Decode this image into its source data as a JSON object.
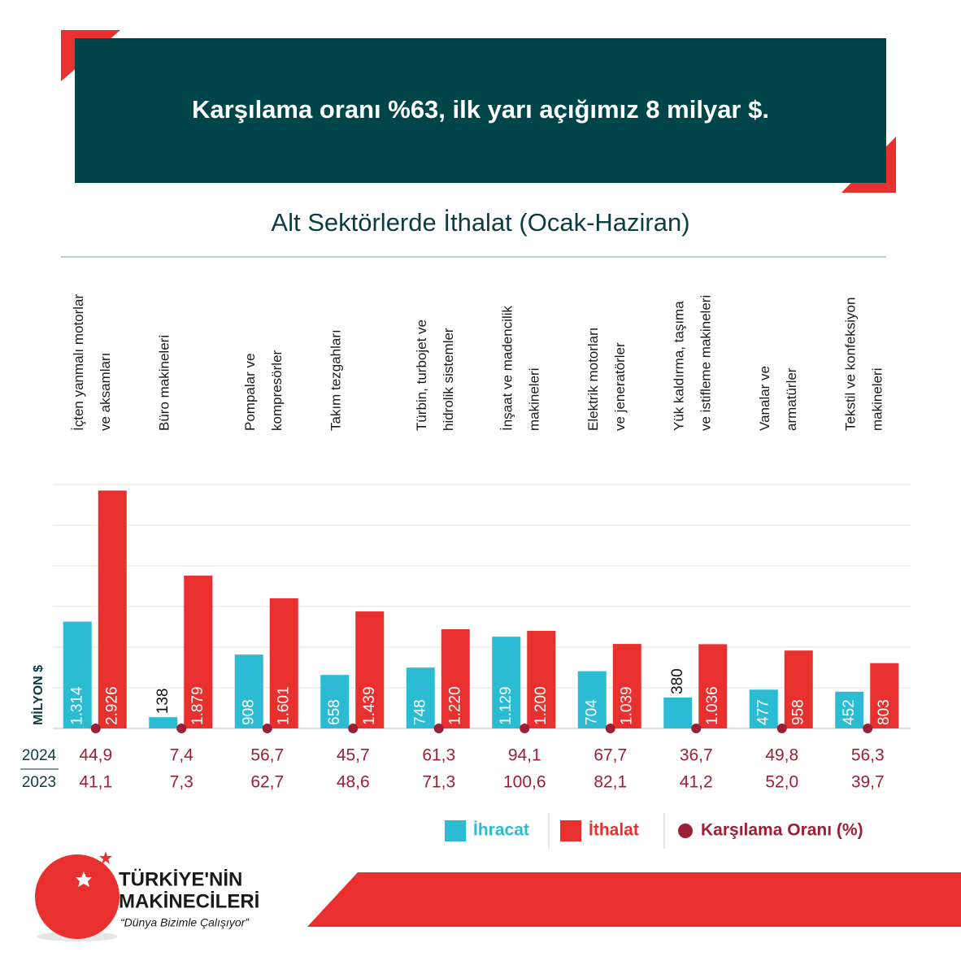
{
  "header": {
    "title": "Karşılama oranı %63, ilk yarı açığımız 8 milyar $."
  },
  "chart_data": {
    "type": "bar",
    "title": "Alt Sektörlerde İthalat (Ocak-Haziran)",
    "y_label": "MİLYON $",
    "categories": [
      [
        "İçten yanmalı motorlar",
        "ve aksamları"
      ],
      [
        "Büro makineleri"
      ],
      [
        "Pompalar ve",
        "kompresörler"
      ],
      [
        "Takım tezgahları"
      ],
      [
        "Türbin, turbojet ve",
        "hidrolik sistemler"
      ],
      [
        "İnşaat ve madencilik",
        "makineleri"
      ],
      [
        "Elektrik motorları",
        "ve jeneratörler"
      ],
      [
        "Yük kaldırma, taşıma",
        "ve istifleme makineleri"
      ],
      [
        "Vanalar ve",
        "armatürler"
      ],
      [
        "Tekstil ve konfeksiyon",
        "makineleri"
      ]
    ],
    "series": [
      {
        "name": "İhracat",
        "color": "#2bbcd4",
        "values": [
          1314,
          138,
          908,
          658,
          748,
          1129,
          704,
          380,
          477,
          452
        ],
        "value_labels": [
          "1.314",
          "138",
          "908",
          "658",
          "748",
          "1.129",
          "704",
          "380",
          "477",
          "452"
        ]
      },
      {
        "name": "İthalat",
        "color": "#e8302e",
        "values": [
          2926,
          1879,
          1601,
          1439,
          1220,
          1200,
          1039,
          1036,
          958,
          803
        ],
        "value_labels": [
          "2.926",
          "1.879",
          "1.601",
          "1.439",
          "1.220",
          "1.200",
          "1.039",
          "1.036",
          "958",
          "803"
        ]
      }
    ],
    "ratio": {
      "name": "Karşılama Oranı (%)",
      "color": "#9e1f35",
      "rows": [
        {
          "year": 2024,
          "values": [
            44.9,
            7.4,
            56.7,
            45.7,
            61.3,
            94.1,
            67.7,
            36.7,
            49.8,
            56.3
          ],
          "value_labels": [
            "44,9",
            "7,4",
            "56,7",
            "45,7",
            "61,3",
            "94,1",
            "67,7",
            "36,7",
            "49,8",
            "56,3"
          ]
        },
        {
          "year": 2023,
          "values": [
            41.1,
            7.3,
            62.7,
            48.6,
            71.3,
            100.6,
            82.1,
            41.2,
            52.0,
            39.7
          ],
          "value_labels": [
            "41,1",
            "7,3",
            "62,7",
            "48,6",
            "71,3",
            "100,6",
            "82,1",
            "41,2",
            "52,0",
            "39,7"
          ]
        }
      ]
    },
    "ylim": [
      0,
      3000
    ],
    "yticks": [
      0,
      500,
      1000,
      1500,
      2000,
      2500,
      3000
    ],
    "show_tick_labels": false,
    "grid": true
  },
  "footer": {
    "brand": [
      "TÜRKİYE'NİN",
      "MAKİNECİLERİ"
    ],
    "slogan": "“Dünya Bizimle Çalışıyor”"
  }
}
